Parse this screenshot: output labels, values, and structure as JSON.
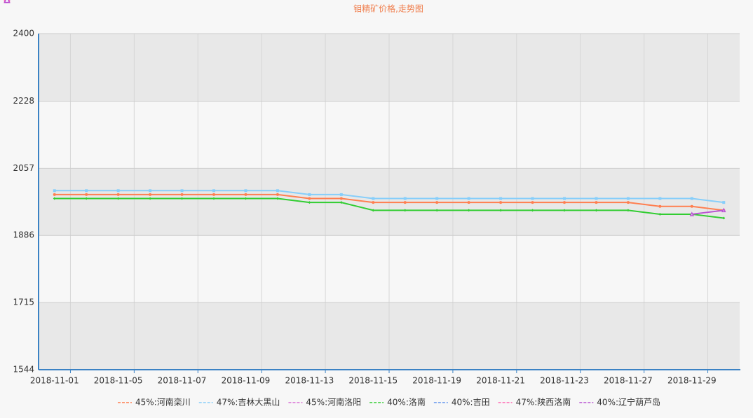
{
  "chart_data": {
    "type": "line",
    "title": "钼精矿价格,走势图",
    "categories": [
      "2018-11-01",
      null,
      "2018-11-05",
      null,
      "2018-11-07",
      null,
      "2018-11-09",
      null,
      "2018-11-13",
      null,
      "2018-11-15",
      null,
      "2018-11-19",
      null,
      "2018-11-21",
      null,
      "2018-11-23",
      null,
      "2018-11-27",
      null,
      "2018-11-29",
      null
    ],
    "series": [
      {
        "name": "45%:河南栾川",
        "color": "#ff7f50",
        "marker": "circle",
        "values": [
          1990,
          1990,
          1990,
          1990,
          1990,
          1990,
          1990,
          1990,
          1980,
          1980,
          1970,
          1970,
          1970,
          1970,
          1970,
          1970,
          1970,
          1970,
          1970,
          1960,
          1960,
          1950
        ]
      },
      {
        "name": "47%:吉林大黑山",
        "color": "#87cefa",
        "marker": "square",
        "values": [
          2000,
          2000,
          2000,
          2000,
          2000,
          2000,
          2000,
          2000,
          1990,
          1990,
          1980,
          1980,
          1980,
          1980,
          1980,
          1980,
          1980,
          1980,
          1980,
          1980,
          1980,
          1970
        ]
      },
      {
        "name": "45%:河南洛阳",
        "color": "#da70d6",
        "marker": "triangle",
        "values": [
          null,
          null,
          null,
          null,
          null,
          null,
          null,
          null,
          null,
          null,
          null,
          null,
          null,
          null,
          null,
          null,
          null,
          null,
          null,
          null,
          null,
          null
        ]
      },
      {
        "name": "40%:洛南",
        "color": "#32cd32",
        "marker": "diamond",
        "values": [
          1980,
          1980,
          1980,
          1980,
          1980,
          1980,
          1980,
          1980,
          1970,
          1970,
          1950,
          1950,
          1950,
          1950,
          1950,
          1950,
          1950,
          1950,
          1950,
          1940,
          1940,
          1930
        ]
      },
      {
        "name": "40%:吉田",
        "color": "#6495ed",
        "marker": "empty-circle",
        "values": [
          null,
          null,
          null,
          null,
          null,
          null,
          null,
          null,
          null,
          null,
          null,
          null,
          null,
          null,
          null,
          null,
          null,
          null,
          null,
          null,
          null,
          null
        ]
      },
      {
        "name": "47%:陕西洛南",
        "color": "#ff69b4",
        "marker": "empty-square",
        "values": [
          null,
          null,
          null,
          null,
          null,
          null,
          null,
          null,
          null,
          null,
          null,
          null,
          null,
          null,
          null,
          null,
          null,
          null,
          null,
          null,
          null,
          null
        ]
      },
      {
        "name": "40%:辽宁葫芦岛",
        "color": "#ba55d3",
        "marker": "empty-triangle",
        "values": [
          null,
          null,
          null,
          null,
          null,
          null,
          null,
          null,
          null,
          null,
          null,
          null,
          null,
          null,
          null,
          null,
          null,
          null,
          null,
          null,
          1940,
          1950
        ]
      }
    ],
    "ylim": [
      1544,
      2400
    ],
    "yticks": [
      1544,
      1715,
      1886,
      2057,
      2228,
      2400
    ],
    "grid": true,
    "legend": "bottom"
  }
}
